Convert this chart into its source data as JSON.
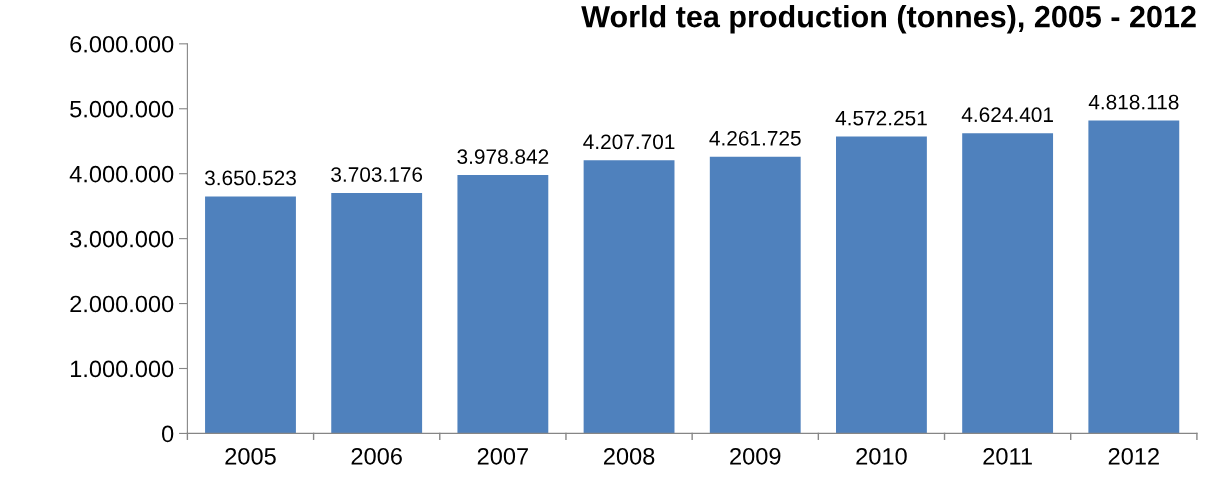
{
  "chart_data": {
    "type": "bar",
    "title": "World tea production (tonnes), 2005 - 2012",
    "categories": [
      "2005",
      "2006",
      "2007",
      "2008",
      "2009",
      "2010",
      "2011",
      "2012"
    ],
    "values": [
      3650523,
      3703176,
      3978842,
      4207701,
      4261725,
      4572251,
      4624401,
      4818118
    ],
    "value_labels": [
      "3.650.523",
      "3.703.176",
      "3.978.842",
      "4.207.701",
      "4.261.725",
      "4.572.251",
      "4.624.401",
      "4.818.118"
    ],
    "color": "#4f81bd",
    "ylim": [
      0,
      6000000
    ],
    "yticks": [
      {
        "value": 0,
        "label": "0"
      },
      {
        "value": 1000000,
        "label": "1.000.000"
      },
      {
        "value": 2000000,
        "label": "2.000.000"
      },
      {
        "value": 3000000,
        "label": "3.000.000"
      },
      {
        "value": 4000000,
        "label": "4.000.000"
      },
      {
        "value": 5000000,
        "label": "5.000.000"
      },
      {
        "value": 6000000,
        "label": "6.000.000"
      }
    ],
    "grid": false,
    "legend": false
  }
}
